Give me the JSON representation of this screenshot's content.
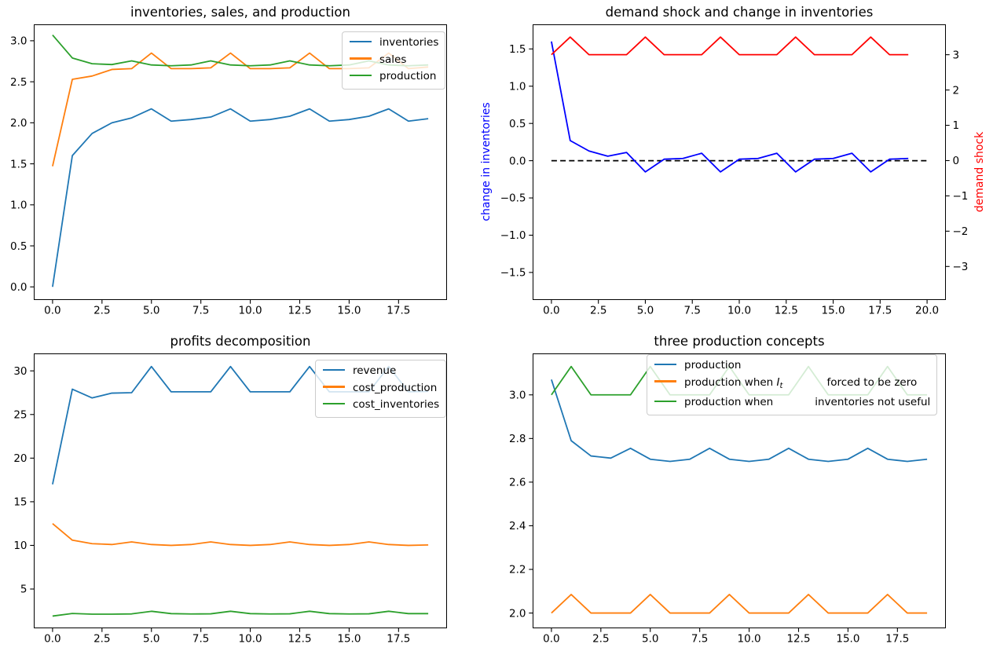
{
  "chart_data": [
    {
      "type": "line",
      "title": "inventories, sales, and production",
      "xlim": [
        -0.95,
        19.95
      ],
      "ylim": [
        -0.16,
        3.2
      ],
      "xticks": [
        0,
        2.5,
        5,
        7.5,
        10,
        12.5,
        15,
        17.5
      ],
      "xtick_labels": [
        "0.0",
        "2.5",
        "5.0",
        "7.5",
        "10.0",
        "12.5",
        "15.0",
        "17.5"
      ],
      "yticks": [
        0,
        0.5,
        1,
        1.5,
        2,
        2.5,
        3
      ],
      "ytick_labels": [
        "0.0",
        "0.5",
        "1.0",
        "1.5",
        "2.0",
        "2.5",
        "3.0"
      ],
      "grid": false,
      "legend_position": "upper right",
      "legend": [
        {
          "color": "#1f77b4",
          "parts": [
            {
              "text": "inventories"
            }
          ]
        },
        {
          "color": "#ff7f0e",
          "parts": [
            {
              "text": "sales"
            }
          ]
        },
        {
          "color": "#2ca02c",
          "parts": [
            {
              "text": "production"
            }
          ]
        }
      ],
      "series": [
        {
          "name": "inventories",
          "color": "#1f77b4",
          "values": [
            0.0,
            1.6,
            1.87,
            2.0,
            2.06,
            2.17,
            2.02,
            2.04,
            2.07,
            2.17,
            2.02,
            2.04,
            2.08,
            2.17,
            2.02,
            2.04,
            2.08,
            2.17,
            2.02,
            2.05
          ]
        },
        {
          "name": "sales",
          "color": "#ff7f0e",
          "values": [
            1.47,
            2.53,
            2.57,
            2.65,
            2.66,
            2.85,
            2.66,
            2.66,
            2.67,
            2.85,
            2.66,
            2.66,
            2.67,
            2.85,
            2.66,
            2.66,
            2.67,
            2.85,
            2.66,
            2.68
          ]
        },
        {
          "name": "production",
          "color": "#2ca02c",
          "values": [
            3.07,
            2.79,
            2.72,
            2.71,
            2.755,
            2.705,
            2.695,
            2.705,
            2.755,
            2.705,
            2.695,
            2.705,
            2.755,
            2.705,
            2.695,
            2.705,
            2.755,
            2.705,
            2.695,
            2.705
          ]
        }
      ]
    },
    {
      "type": "line",
      "title": "demand shock and change in inventories",
      "ylabel_left": "change in inventories",
      "ylabel_left_color": "#0000ff",
      "ylabel_right": "demand shock",
      "ylabel_right_color": "#ff0000",
      "xlim": [
        -1,
        21
      ],
      "ylim": [
        -1.87,
        1.83
      ],
      "ylim_right": [
        -3.95,
        3.86
      ],
      "xticks": [
        0,
        2.5,
        5,
        7.5,
        10,
        12.5,
        15,
        17.5,
        20
      ],
      "xtick_labels": [
        "0.0",
        "2.5",
        "5.0",
        "7.5",
        "10.0",
        "12.5",
        "15.0",
        "17.5",
        "20.0"
      ],
      "yticks": [
        -1.5,
        -1.0,
        -0.5,
        0,
        0.5,
        1.0,
        1.5
      ],
      "ytick_labels": [
        "−1.5",
        "−1.0",
        "−0.5",
        "0.0",
        "0.5",
        "1.0",
        "1.5"
      ],
      "yticks_right": [
        -3,
        -2,
        -1,
        0,
        1,
        2,
        3
      ],
      "ytick_right_labels": [
        "−3",
        "−2",
        "−1",
        "0",
        "1",
        "2",
        "3"
      ],
      "grid": false,
      "series": [
        {
          "name": "zero line",
          "color": "#000000",
          "dash": true,
          "x": [
            0,
            20
          ],
          "values": [
            0,
            0
          ]
        },
        {
          "name": "change in inventories",
          "color": "#0000ff",
          "values": [
            1.6,
            0.27,
            0.13,
            0.06,
            0.11,
            -0.15,
            0.02,
            0.03,
            0.1,
            -0.15,
            0.02,
            0.03,
            0.1,
            -0.15,
            0.02,
            0.03,
            0.1,
            -0.15,
            0.02,
            0.03
          ]
        },
        {
          "name": "demand shock",
          "color": "#ff0000",
          "axis": "right",
          "values": [
            3,
            3.5,
            3,
            3,
            3,
            3.5,
            3,
            3,
            3,
            3.5,
            3,
            3,
            3,
            3.5,
            3,
            3,
            3,
            3.5,
            3,
            3
          ]
        }
      ]
    },
    {
      "type": "line",
      "title": "profits decomposition",
      "xlim": [
        -0.95,
        19.95
      ],
      "ylim": [
        0.5,
        32.0
      ],
      "xticks": [
        0,
        2.5,
        5,
        7.5,
        10,
        12.5,
        15,
        17.5
      ],
      "xtick_labels": [
        "0.0",
        "2.5",
        "5.0",
        "7.5",
        "10.0",
        "12.5",
        "15.0",
        "17.5"
      ],
      "yticks": [
        5,
        10,
        15,
        20,
        25,
        30
      ],
      "ytick_labels": [
        "5",
        "10",
        "15",
        "20",
        "25",
        "30"
      ],
      "grid": false,
      "legend_position": "upper right",
      "legend": [
        {
          "color": "#1f77b4",
          "parts": [
            {
              "text": "revenue"
            }
          ]
        },
        {
          "color": "#ff7f0e",
          "parts": [
            {
              "text": "cost_production"
            }
          ]
        },
        {
          "color": "#2ca02c",
          "parts": [
            {
              "text": "cost_inventories"
            }
          ]
        }
      ],
      "series": [
        {
          "name": "revenue",
          "color": "#1f77b4",
          "values": [
            17.0,
            27.9,
            26.9,
            27.45,
            27.5,
            30.5,
            27.6,
            27.6,
            27.6,
            30.5,
            27.6,
            27.6,
            27.6,
            30.5,
            27.6,
            27.6,
            27.6,
            30.5,
            27.6,
            27.65
          ]
        },
        {
          "name": "cost_production",
          "color": "#ff7f0e",
          "values": [
            12.5,
            10.6,
            10.2,
            10.1,
            10.4,
            10.1,
            10.0,
            10.1,
            10.4,
            10.1,
            10.0,
            10.1,
            10.4,
            10.1,
            10.0,
            10.1,
            10.4,
            10.1,
            10.0,
            10.05
          ]
        },
        {
          "name": "cost_inventories",
          "color": "#2ca02c",
          "values": [
            1.9,
            2.2,
            2.12,
            2.12,
            2.15,
            2.45,
            2.18,
            2.14,
            2.16,
            2.45,
            2.18,
            2.14,
            2.16,
            2.45,
            2.18,
            2.14,
            2.16,
            2.45,
            2.18,
            2.18
          ]
        }
      ]
    },
    {
      "type": "line",
      "title": "three production concepts",
      "xlim": [
        -0.95,
        19.95
      ],
      "ylim": [
        1.93,
        3.19
      ],
      "xticks": [
        0,
        2.5,
        5,
        7.5,
        10,
        12.5,
        15,
        17.5
      ],
      "xtick_labels": [
        "0.0",
        "2.5",
        "5.0",
        "7.5",
        "10.0",
        "12.5",
        "15.0",
        "17.5"
      ],
      "yticks": [
        2.0,
        2.2,
        2.4,
        2.6,
        2.8,
        3.0
      ],
      "ytick_labels": [
        "2.0",
        "2.2",
        "2.4",
        "2.6",
        "2.8",
        "3.0"
      ],
      "grid": false,
      "legend_position": "upper center",
      "legend": [
        {
          "color": "#1f77b4",
          "parts": [
            {
              "text": "production"
            }
          ]
        },
        {
          "color": "#ff7f0e",
          "parts": [
            {
              "text": "production when "
            },
            {
              "text": "I",
              "italic": true
            },
            {
              "text": "t",
              "sub": true
            },
            {
              "text": "forced to be zero",
              "gap": 56
            }
          ]
        },
        {
          "color": "#2ca02c",
          "parts": [
            {
              "text": "production when"
            },
            {
              "text": "inventories not useful",
              "gap": 53
            }
          ]
        }
      ],
      "series": [
        {
          "name": "production",
          "color": "#1f77b4",
          "values": [
            3.07,
            2.79,
            2.72,
            2.71,
            2.755,
            2.705,
            2.695,
            2.705,
            2.755,
            2.705,
            2.695,
            2.705,
            2.755,
            2.705,
            2.695,
            2.705,
            2.755,
            2.705,
            2.695,
            2.705
          ]
        },
        {
          "name": "production when It forced to be zero",
          "color": "#ff7f0e",
          "values": [
            2.0,
            2.085,
            2.0,
            2.0,
            2.0,
            2.085,
            2.0,
            2.0,
            2.0,
            2.085,
            2.0,
            2.0,
            2.0,
            2.085,
            2.0,
            2.0,
            2.0,
            2.085,
            2.0,
            2.0
          ]
        },
        {
          "name": "production when inventories not useful",
          "color": "#2ca02c",
          "values": [
            3.0,
            3.13,
            3.0,
            3.0,
            3.0,
            3.13,
            3.0,
            3.0,
            3.0,
            3.13,
            3.0,
            3.0,
            3.0,
            3.13,
            3.0,
            3.0,
            3.0,
            3.13,
            3.0,
            3.0
          ]
        }
      ]
    }
  ]
}
